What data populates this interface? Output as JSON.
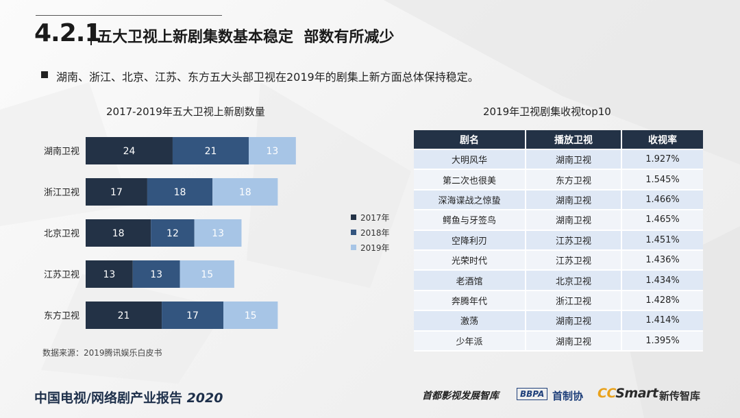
{
  "header": {
    "section_number": "4.2.1",
    "title": "五大卫视上新剧集数基本稳定  部数有所减少"
  },
  "lead_text": "湖南、浙江、北京、江苏、东方五大头部卫视在2019年的剧集上新方面总体保持稳定。",
  "chart_data": {
    "type": "bar",
    "orientation": "horizontal",
    "stacked": true,
    "title": "2017-2019年五大卫视上新剧数量",
    "categories": [
      "湖南卫视",
      "浙江卫视",
      "北京卫视",
      "江苏卫视",
      "东方卫视"
    ],
    "series": [
      {
        "name": "2017年",
        "values": [
          24,
          17,
          18,
          13,
          21
        ],
        "color": "#233246"
      },
      {
        "name": "2018年",
        "values": [
          21,
          18,
          12,
          13,
          17
        ],
        "color": "#33557f"
      },
      {
        "name": "2019年",
        "values": [
          13,
          18,
          13,
          15,
          15
        ],
        "color": "#a7c5e6"
      }
    ],
    "legend_position": "right",
    "grid": false,
    "xlim": [
      0,
      58
    ]
  },
  "source_note": "数据来源：2019腾讯娱乐白皮书",
  "table": {
    "title": "2019年卫视剧集收视top10",
    "headers": [
      "剧名",
      "播放卫视",
      "收视率"
    ],
    "rows": [
      [
        "大明风华",
        "湖南卫视",
        "1.927%"
      ],
      [
        "第二次也很美",
        "东方卫视",
        "1.545%"
      ],
      [
        "深海谍战之惊蛰",
        "湖南卫视",
        "1.466%"
      ],
      [
        "鳄鱼与牙签鸟",
        "湖南卫视",
        "1.465%"
      ],
      [
        "空降利刃",
        "江苏卫视",
        "1.451%"
      ],
      [
        "光荣时代",
        "江苏卫视",
        "1.436%"
      ],
      [
        "老酒馆",
        "北京卫视",
        "1.434%"
      ],
      [
        "奔腾年代",
        "浙江卫视",
        "1.428%"
      ],
      [
        "激荡",
        "湖南卫视",
        "1.414%"
      ],
      [
        "少年派",
        "湖南卫视",
        "1.395%"
      ]
    ]
  },
  "footer": {
    "report_title": "中国电视/网络剧产业报告 ",
    "report_year": "2020",
    "brand1": "首都影视发展智库",
    "brand2_logo": "BBPA",
    "brand2_name": "首制协",
    "brand3_logo_cc": "CC",
    "brand3_logo_smart": "Smart",
    "brand3_name": "新传智库"
  }
}
